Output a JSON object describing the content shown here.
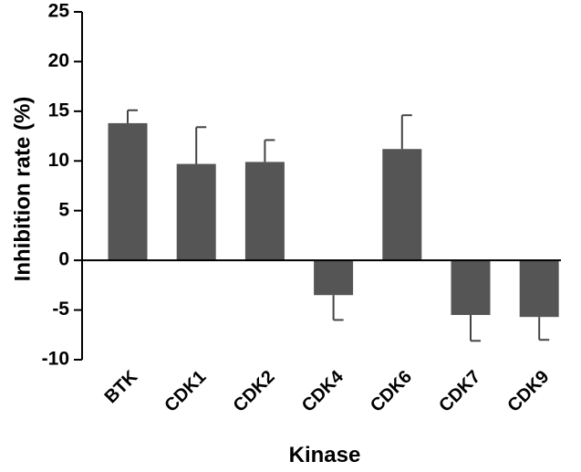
{
  "chart_data": {
    "type": "bar",
    "title": "",
    "xlabel": "Kinase",
    "ylabel": "Inhibition rate (%)",
    "ylim": [
      -10,
      25
    ],
    "yticks": [
      25,
      20,
      15,
      10,
      5,
      0,
      -5,
      -10
    ],
    "ytick_labels": [
      "25",
      "20",
      "15",
      "10",
      "5",
      "0",
      "-5",
      "-10"
    ],
    "categories": [
      "BTK",
      "CDK1",
      "CDK2",
      "CDK4",
      "CDK6",
      "CDK7",
      "CDK9"
    ],
    "values": [
      13.8,
      9.7,
      9.9,
      -3.5,
      11.2,
      -5.5,
      -5.7
    ],
    "errors": [
      1.3,
      3.7,
      2.2,
      2.5,
      3.4,
      2.6,
      2.3
    ],
    "bar_color": "#555555",
    "grid": false
  }
}
